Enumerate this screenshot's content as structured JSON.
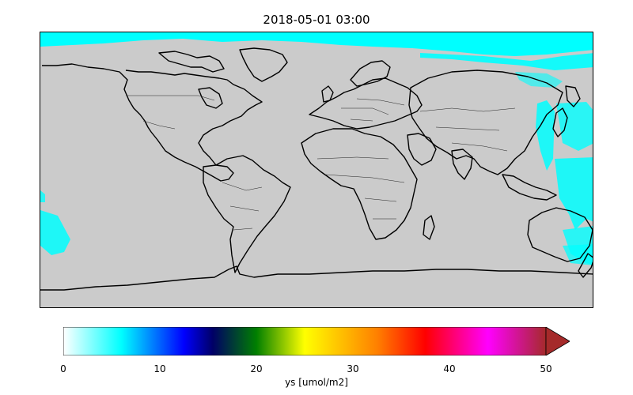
{
  "map": {
    "title": "2018-05-01 03:00",
    "projection": "PlateCarree",
    "land_color": "#cbcbcb",
    "data_color": "#00ffff"
  },
  "colorbar": {
    "label": "ys [umol/m2]",
    "extend": "max",
    "min": 0,
    "max": 50,
    "ticks": [
      "0",
      "10",
      "20",
      "30",
      "40",
      "50"
    ],
    "colors": [
      "#ffffff",
      "#00ffff",
      "#0000ff",
      "#000066",
      "#007f00",
      "#ffff00",
      "#ff8000",
      "#ff0000",
      "#ff00ff",
      "#a52a2a"
    ]
  }
}
